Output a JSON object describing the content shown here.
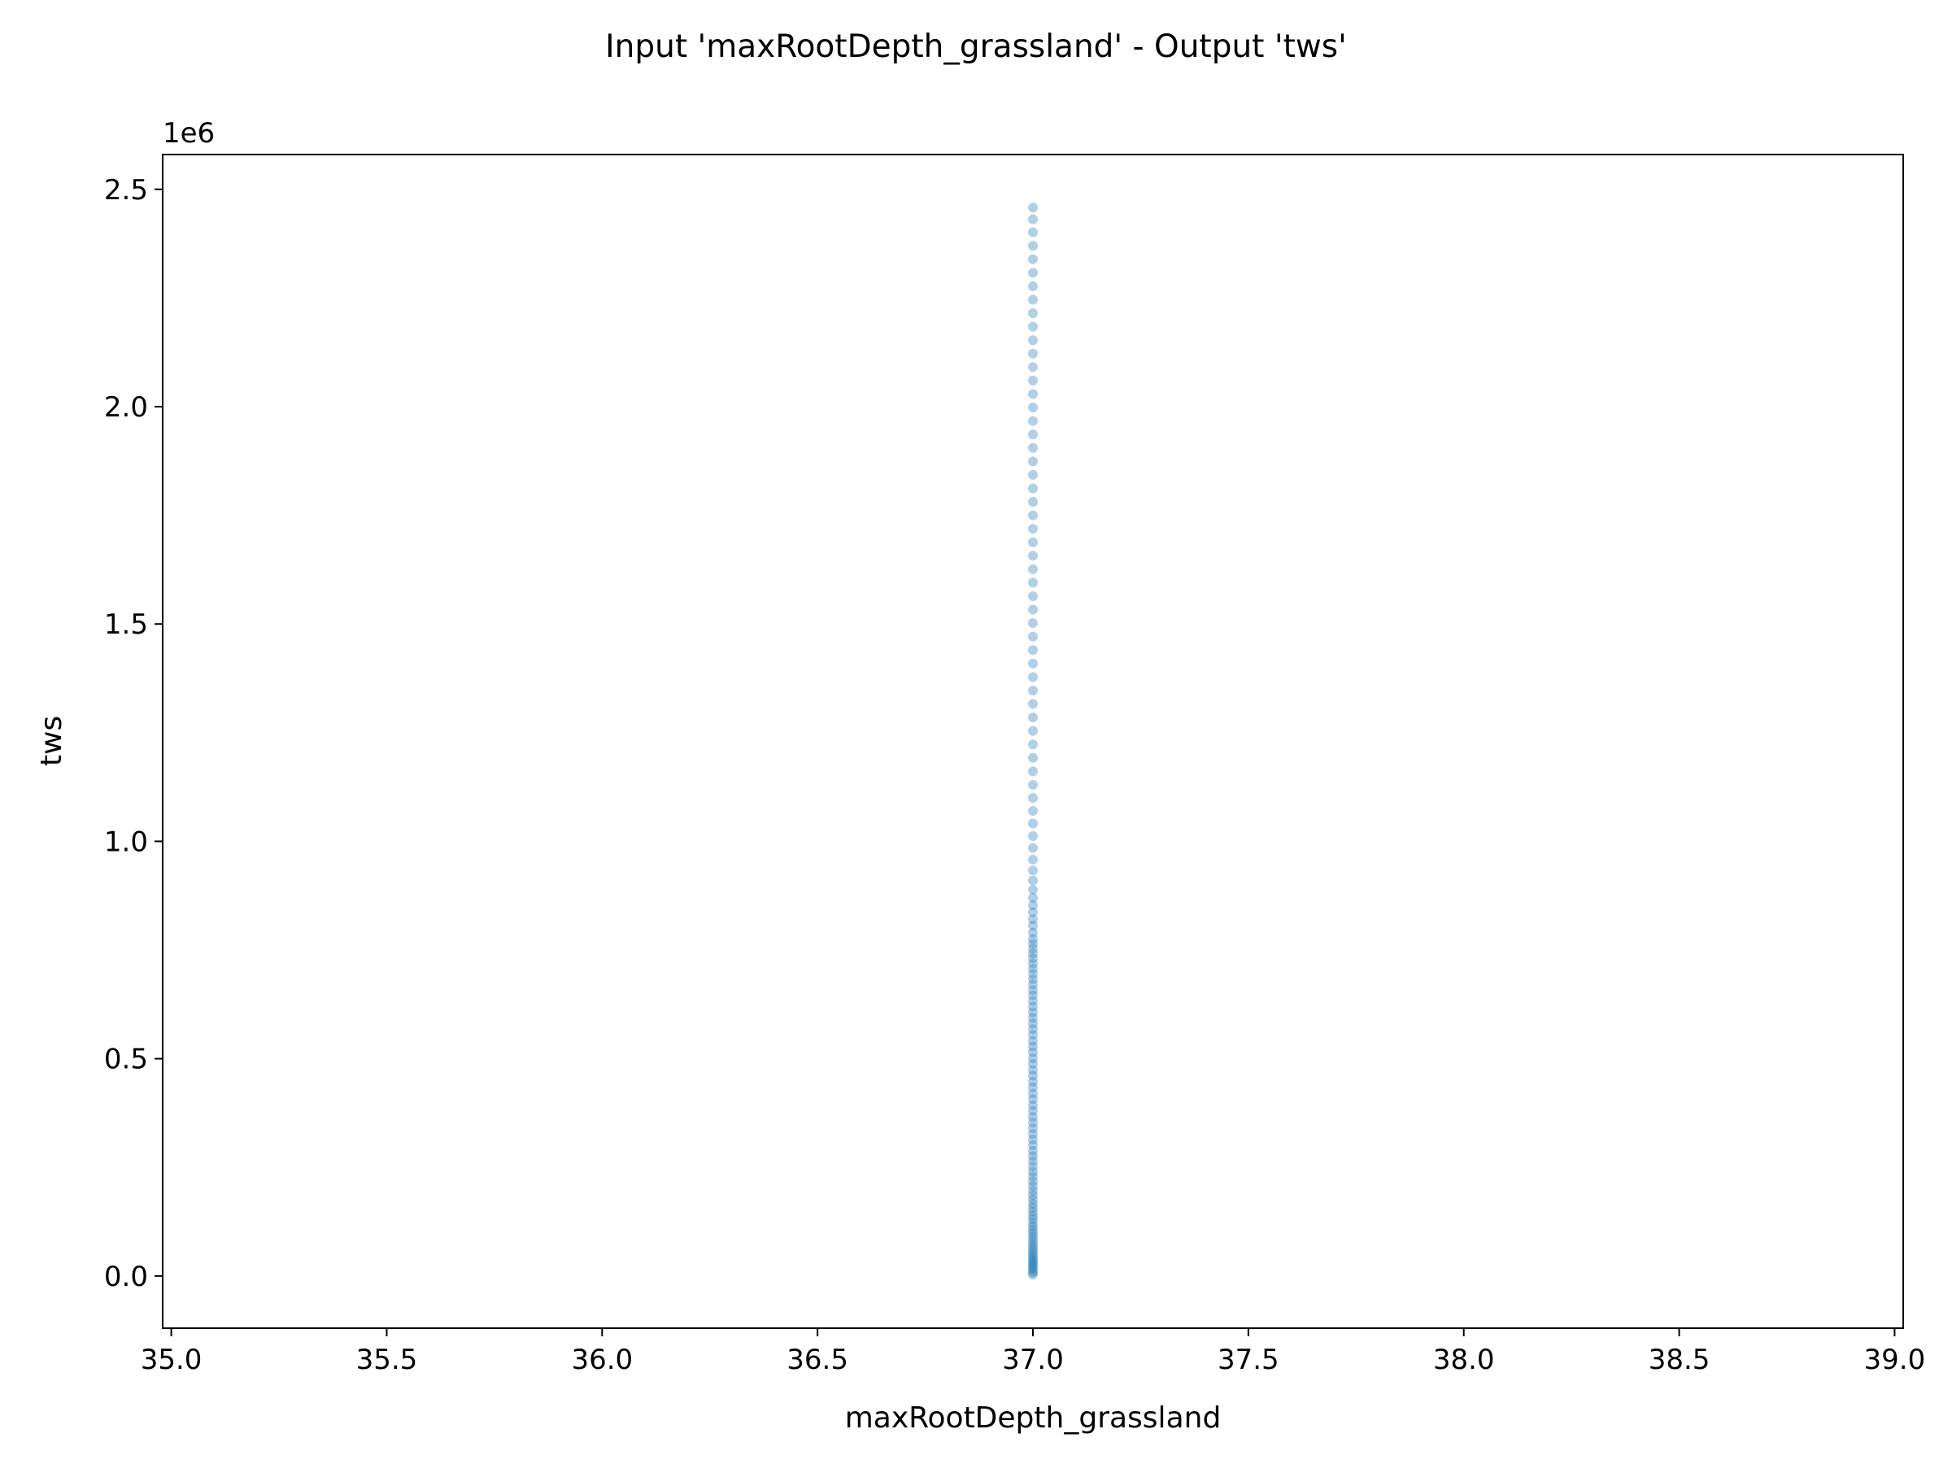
{
  "chart_data": {
    "type": "scatter",
    "title": "Input 'maxRootDepth_grassland' - Output 'tws'",
    "xlabel": "maxRootDepth_grassland",
    "ylabel": "tws",
    "y_offset_text": "1e6",
    "xlim": [
      34.98,
      39.02
    ],
    "ylim": [
      -0.12,
      2.58
    ],
    "x_ticks": [
      35.0,
      35.5,
      36.0,
      36.5,
      37.0,
      37.5,
      38.0,
      38.5,
      39.0
    ],
    "x_tick_labels": [
      "35.0",
      "35.5",
      "36.0",
      "36.5",
      "37.0",
      "37.5",
      "38.0",
      "38.5",
      "39.0"
    ],
    "y_ticks": [
      0.0,
      0.5,
      1.0,
      1.5,
      2.0,
      2.5
    ],
    "y_tick_labels": [
      "0.0",
      "0.5",
      "1.0",
      "1.5",
      "2.0",
      "2.5"
    ],
    "y_multiplier": 1000000,
    "grid": false,
    "point_color": "#1f77b4",
    "point_alpha": 0.35,
    "series": [
      {
        "x_constant": 37.0,
        "y_values": [
          0.003,
          0.008,
          0.012,
          0.018,
          0.022,
          0.027,
          0.031,
          0.036,
          0.041,
          0.046,
          0.052,
          0.058,
          0.064,
          0.07,
          0.077,
          0.084,
          0.091,
          0.099,
          0.106,
          0.114,
          0.122,
          0.131,
          0.139,
          0.148,
          0.157,
          0.166,
          0.176,
          0.186,
          0.196,
          0.207,
          0.218,
          0.229,
          0.24,
          0.252,
          0.264,
          0.276,
          0.288,
          0.301,
          0.314,
          0.327,
          0.34,
          0.353,
          0.366,
          0.38,
          0.393,
          0.407,
          0.42,
          0.434,
          0.447,
          0.461,
          0.474,
          0.488,
          0.501,
          0.515,
          0.528,
          0.541,
          0.555,
          0.568,
          0.581,
          0.594,
          0.607,
          0.62,
          0.633,
          0.646,
          0.658,
          0.671,
          0.683,
          0.695,
          0.707,
          0.719,
          0.731,
          0.742,
          0.753,
          0.764,
          0.775,
          0.79,
          0.806,
          0.821,
          0.837,
          0.853,
          0.87,
          0.889,
          0.91,
          0.933,
          0.958,
          0.985,
          1.012,
          1.041,
          1.07,
          1.1,
          1.13,
          1.161,
          1.192,
          1.223,
          1.254,
          1.285,
          1.316,
          1.347,
          1.378,
          1.409,
          1.44,
          1.471,
          1.502,
          1.533,
          1.564,
          1.595,
          1.626,
          1.657,
          1.688,
          1.719,
          1.75,
          1.781,
          1.812,
          1.843,
          1.874,
          1.905,
          1.936,
          1.967,
          1.998,
          2.029,
          2.06,
          2.091,
          2.122,
          2.153,
          2.184,
          2.215,
          2.246,
          2.277,
          2.308,
          2.339,
          2.37,
          2.401,
          2.431,
          2.458
        ]
      }
    ]
  }
}
